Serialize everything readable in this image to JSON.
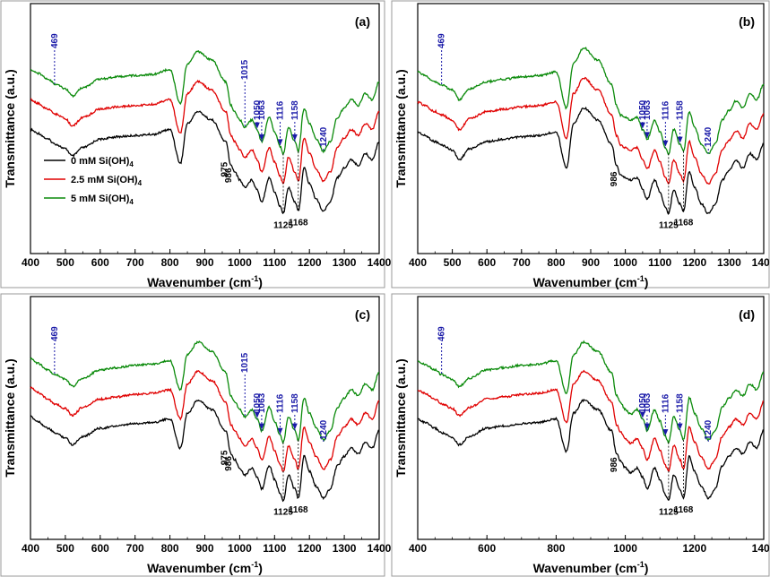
{
  "chart_data": {
    "type": "line",
    "shared": {
      "xlabel": "Wavenumber (cm",
      "xlabel_sup": "-1",
      "xlabel_close": ")",
      "ylabel": "Transmittance (a.u.)",
      "xlim": [
        400,
        1400
      ],
      "series": [
        {
          "name": "0 mM Si(OH)",
          "subscript": "4",
          "color": "#000000"
        },
        {
          "name": "2.5 mM Si(OH)",
          "subscript": "4",
          "color": "#e00000"
        },
        {
          "name": "5 mM Si(OH)",
          "subscript": "4",
          "color": "#0a8a0a"
        }
      ],
      "x_nodes": [
        400,
        420,
        450,
        470,
        500,
        520,
        550,
        600,
        650,
        700,
        750,
        800,
        830,
        850,
        880,
        920,
        960,
        975,
        986,
        1000,
        1015,
        1035,
        1050,
        1063,
        1085,
        1100,
        1116,
        1125,
        1140,
        1158,
        1168,
        1185,
        1200,
        1220,
        1240,
        1260,
        1280,
        1300,
        1320,
        1340,
        1360,
        1380,
        1400
      ]
    },
    "panels": [
      {
        "label": "(a)",
        "xticks": [
          400,
          500,
          600,
          700,
          800,
          900,
          1000,
          1100,
          1200,
          1300,
          1400
        ],
        "legend": true,
        "profile": [
          0.3,
          0.33,
          0.38,
          0.42,
          0.46,
          0.52,
          0.45,
          0.38,
          0.36,
          0.35,
          0.34,
          0.3,
          0.58,
          0.25,
          0.15,
          0.22,
          0.4,
          0.6,
          0.65,
          0.72,
          0.78,
          0.72,
          0.8,
          0.9,
          0.7,
          0.82,
          0.94,
          1.0,
          0.78,
          0.9,
          0.98,
          0.62,
          0.75,
          0.88,
          0.98,
          0.9,
          0.7,
          0.62,
          0.55,
          0.6,
          0.5,
          0.55,
          0.4
        ],
        "blue_annotations": [
          "469",
          "1015",
          "1050",
          "1063",
          "1116",
          "1158",
          "1240"
        ],
        "black_annotations": [
          "975",
          "986",
          "1125",
          "1168"
        ]
      },
      {
        "label": "(b)",
        "xticks": [
          400,
          500,
          600,
          700,
          800,
          900,
          1000,
          1100,
          1200,
          1300,
          1400
        ],
        "legend": false,
        "profile": [
          0.32,
          0.35,
          0.4,
          0.43,
          0.47,
          0.55,
          0.46,
          0.4,
          0.38,
          0.36,
          0.35,
          0.32,
          0.62,
          0.25,
          0.12,
          0.22,
          0.42,
          0.6,
          0.68,
          0.7,
          0.72,
          0.7,
          0.8,
          0.88,
          0.72,
          0.82,
          0.95,
          1.0,
          0.8,
          0.92,
          0.98,
          0.65,
          0.78,
          0.92,
          1.0,
          0.92,
          0.72,
          0.64,
          0.56,
          0.62,
          0.5,
          0.55,
          0.42
        ],
        "blue_annotations": [
          "469",
          "1050",
          "1063",
          "1116",
          "1158",
          "1240"
        ],
        "black_annotations": [
          "986",
          "1125",
          "1168"
        ]
      },
      {
        "label": "(c)",
        "xticks": [
          400,
          500,
          600,
          700,
          800,
          900,
          1000,
          1100,
          1200,
          1300,
          1400
        ],
        "legend": false,
        "profile": [
          0.28,
          0.32,
          0.38,
          0.42,
          0.46,
          0.52,
          0.45,
          0.38,
          0.36,
          0.34,
          0.33,
          0.3,
          0.55,
          0.25,
          0.14,
          0.22,
          0.4,
          0.6,
          0.65,
          0.72,
          0.78,
          0.72,
          0.8,
          0.9,
          0.7,
          0.82,
          0.94,
          1.0,
          0.78,
          0.9,
          0.98,
          0.62,
          0.75,
          0.88,
          0.98,
          0.9,
          0.7,
          0.62,
          0.55,
          0.6,
          0.5,
          0.55,
          0.4
        ],
        "blue_annotations": [
          "469",
          "1015",
          "1050",
          "1063",
          "1116",
          "1158",
          "1240"
        ],
        "black_annotations": [
          "975",
          "986",
          "1125",
          "1168"
        ]
      },
      {
        "label": "(d)",
        "xticks": [
          400,
          600,
          800,
          1000,
          1200,
          1400
        ],
        "legend": false,
        "profile": [
          0.3,
          0.33,
          0.38,
          0.42,
          0.46,
          0.52,
          0.45,
          0.38,
          0.36,
          0.34,
          0.33,
          0.3,
          0.58,
          0.25,
          0.14,
          0.22,
          0.4,
          0.6,
          0.66,
          0.72,
          0.76,
          0.72,
          0.8,
          0.9,
          0.72,
          0.82,
          0.95,
          1.0,
          0.78,
          0.9,
          0.98,
          0.62,
          0.75,
          0.88,
          0.98,
          0.9,
          0.7,
          0.62,
          0.55,
          0.6,
          0.5,
          0.55,
          0.4
        ],
        "blue_annotations": [
          "469",
          "1050",
          "1063",
          "1116",
          "1158",
          "1240"
        ],
        "black_annotations": [
          "986",
          "1125",
          "1168"
        ]
      }
    ]
  }
}
